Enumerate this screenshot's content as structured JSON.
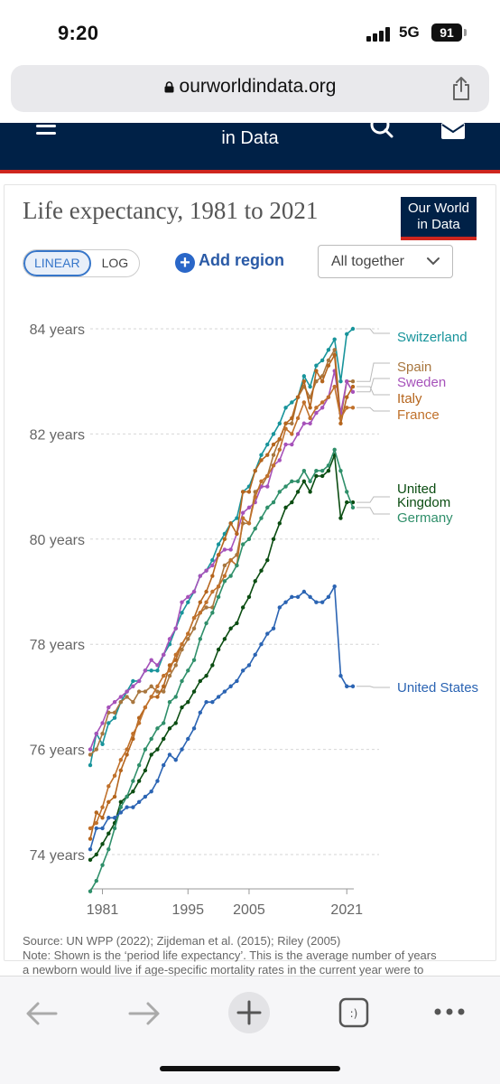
{
  "status_bar": {
    "time": "9:20",
    "network": "5G",
    "battery": "91"
  },
  "browser": {
    "url": "ourworldindata.org"
  },
  "site_header": {
    "title": "in Data"
  },
  "chart_header": {
    "title": "Life expectancy, 1981 to 2021",
    "logo_line1": "Our World",
    "logo_line2": "in Data"
  },
  "controls": {
    "linear_label": "LINEAR",
    "log_label": "LOG",
    "add_region_label": "Add region",
    "dropdown_label": "All together"
  },
  "source": {
    "line1": "Source: UN WPP (2022); Zijdeman et al. (2015); Riley (2005)",
    "line2": "Note: Shown is the ‘period life expectancy’. This is the average number of years",
    "line3": "a newborn would live if age-specific mortality rates in the current year were to"
  },
  "colors": {
    "header_bg": "#002147",
    "header_accent": "#ce261e",
    "switzerland": "#18949b",
    "spain": "#a8763e",
    "sweden": "#a652ba",
    "italy": "#b5651d",
    "france": "#c0712b",
    "united_kingdom": "#0b4d12",
    "germany": "#2f8f6a",
    "united_states": "#2b64b3"
  },
  "chart_data": {
    "type": "line",
    "title": "Life expectancy, 1981 to 2021",
    "ylim": [
      73.5,
      84.3
    ],
    "xlim": [
      1979,
      2022
    ],
    "y_ticks": [
      74,
      76,
      78,
      80,
      82,
      84
    ],
    "y_tick_labels": [
      "74 years",
      "76 years",
      "78 years",
      "80 years",
      "82 years",
      "84 years"
    ],
    "x_ticks": [
      1981,
      1995,
      2005,
      2021
    ],
    "x_tick_labels": [
      "1981",
      "1995",
      "2005",
      "2021"
    ],
    "grid": "horizontal dashed",
    "legend": "right-end labels",
    "x": [
      1979,
      1980,
      1981,
      1982,
      1983,
      1984,
      1985,
      1986,
      1987,
      1988,
      1989,
      1990,
      1991,
      1992,
      1993,
      1994,
      1995,
      1996,
      1997,
      1998,
      1999,
      2000,
      2001,
      2002,
      2003,
      2004,
      2005,
      2006,
      2007,
      2008,
      2009,
      2010,
      2011,
      2012,
      2013,
      2014,
      2015,
      2016,
      2017,
      2018,
      2019,
      2020,
      2021,
      2022
    ],
    "series": [
      {
        "name": "Switzerland",
        "key": "switzerland",
        "label_lines": [
          "Switzerland"
        ],
        "values": [
          75.7,
          76.3,
          76.1,
          76.5,
          76.6,
          76.9,
          77.1,
          77.3,
          77.3,
          77.5,
          77.5,
          77.5,
          77.8,
          78.0,
          78.3,
          78.6,
          78.8,
          79.0,
          79.3,
          79.4,
          79.6,
          79.9,
          80.1,
          80.3,
          80.4,
          80.9,
          81.0,
          81.3,
          81.6,
          81.8,
          82.0,
          82.2,
          82.5,
          82.6,
          82.7,
          83.1,
          82.9,
          83.3,
          83.4,
          83.6,
          83.8,
          83.0,
          83.9,
          84.0
        ]
      },
      {
        "name": "Spain",
        "key": "spain",
        "label_lines": [
          "Spain"
        ],
        "values": [
          75.9,
          76.0,
          76.3,
          76.7,
          76.7,
          76.9,
          77.0,
          76.9,
          77.1,
          77.1,
          77.2,
          77.1,
          77.1,
          77.4,
          77.6,
          77.9,
          78.1,
          78.3,
          78.6,
          78.7,
          78.7,
          79.1,
          79.5,
          79.6,
          79.7,
          80.3,
          80.3,
          80.9,
          81.0,
          81.2,
          81.6,
          81.9,
          82.2,
          82.2,
          82.7,
          82.9,
          82.7,
          83.0,
          83.1,
          83.4,
          83.6,
          82.3,
          83.0,
          83.0
        ]
      },
      {
        "name": "Sweden",
        "key": "sweden",
        "label_lines": [
          "Sweden"
        ],
        "values": [
          76.0,
          76.3,
          76.5,
          76.8,
          76.9,
          77.0,
          77.1,
          77.2,
          77.3,
          77.5,
          77.7,
          77.6,
          77.8,
          78.1,
          78.3,
          78.8,
          78.9,
          79.0,
          79.3,
          79.4,
          79.5,
          79.7,
          79.8,
          79.8,
          80.1,
          80.5,
          80.6,
          80.7,
          81.0,
          81.0,
          81.4,
          81.5,
          81.8,
          81.8,
          82.0,
          82.2,
          82.2,
          82.4,
          82.5,
          82.7,
          83.2,
          82.4,
          83.0,
          82.8
        ]
      },
      {
        "name": "Italy",
        "key": "italy",
        "label_lines": [
          "Italy"
        ],
        "values": [
          74.3,
          74.8,
          74.7,
          75.0,
          75.1,
          75.6,
          75.9,
          76.2,
          76.6,
          76.8,
          77.0,
          77.0,
          77.2,
          77.6,
          77.7,
          78.0,
          78.2,
          78.5,
          78.8,
          79.0,
          79.3,
          79.7,
          80.0,
          80.3,
          80.1,
          80.9,
          80.9,
          81.3,
          81.5,
          81.6,
          81.8,
          81.9,
          82.2,
          82.3,
          82.7,
          83.0,
          82.5,
          83.2,
          83.0,
          83.3,
          83.5,
          82.2,
          82.7,
          82.9
        ]
      },
      {
        "name": "France",
        "key": "france",
        "label_lines": [
          "France"
        ],
        "values": [
          74.5,
          74.6,
          74.9,
          75.3,
          75.5,
          75.8,
          76.0,
          76.3,
          76.5,
          76.8,
          77.0,
          77.2,
          77.4,
          77.5,
          77.8,
          78.0,
          78.2,
          78.5,
          78.6,
          78.8,
          79.0,
          79.1,
          79.3,
          79.6,
          79.5,
          80.4,
          80.3,
          80.8,
          81.1,
          81.2,
          81.4,
          81.7,
          82.1,
          82.0,
          82.3,
          82.6,
          82.3,
          82.5,
          82.6,
          82.7,
          82.9,
          82.3,
          82.5,
          82.5
        ]
      },
      {
        "name": "United Kingdom",
        "key": "united_kingdom",
        "label_lines": [
          "United",
          "Kingdom"
        ],
        "values": [
          73.9,
          74.0,
          74.2,
          74.4,
          74.6,
          75.0,
          75.1,
          75.2,
          75.4,
          75.6,
          75.9,
          76.0,
          76.2,
          76.4,
          76.5,
          76.8,
          76.9,
          77.1,
          77.3,
          77.4,
          77.6,
          77.9,
          78.1,
          78.3,
          78.4,
          78.7,
          78.9,
          79.2,
          79.4,
          79.6,
          80.0,
          80.3,
          80.6,
          80.7,
          80.9,
          81.1,
          80.9,
          81.2,
          81.2,
          81.3,
          81.6,
          80.4,
          80.7,
          80.7
        ]
      },
      {
        "name": "Germany",
        "key": "germany",
        "label_lines": [
          "Germany"
        ],
        "values": [
          73.3,
          73.5,
          73.8,
          74.1,
          74.5,
          74.9,
          75.1,
          75.4,
          75.7,
          76.0,
          76.2,
          76.4,
          76.5,
          76.9,
          77.0,
          77.3,
          77.5,
          77.7,
          78.1,
          78.4,
          78.6,
          78.9,
          79.2,
          79.3,
          79.5,
          79.9,
          80.0,
          80.2,
          80.4,
          80.6,
          80.7,
          80.9,
          81.0,
          81.1,
          81.1,
          81.3,
          81.1,
          81.3,
          81.3,
          81.4,
          81.7,
          81.3,
          80.9,
          80.6
        ]
      },
      {
        "name": "United States",
        "key": "united_states",
        "label_lines": [
          "United States"
        ],
        "values": [
          74.1,
          74.5,
          74.5,
          74.7,
          74.7,
          74.8,
          74.9,
          74.9,
          75.0,
          75.1,
          75.2,
          75.4,
          75.7,
          75.9,
          75.8,
          76.0,
          76.2,
          76.4,
          76.7,
          76.9,
          76.9,
          77.0,
          77.1,
          77.2,
          77.3,
          77.5,
          77.6,
          77.8,
          78.0,
          78.2,
          78.3,
          78.7,
          78.8,
          78.9,
          78.9,
          79.0,
          78.9,
          78.8,
          78.8,
          78.9,
          79.1,
          77.4,
          77.2,
          77.2
        ]
      }
    ]
  }
}
